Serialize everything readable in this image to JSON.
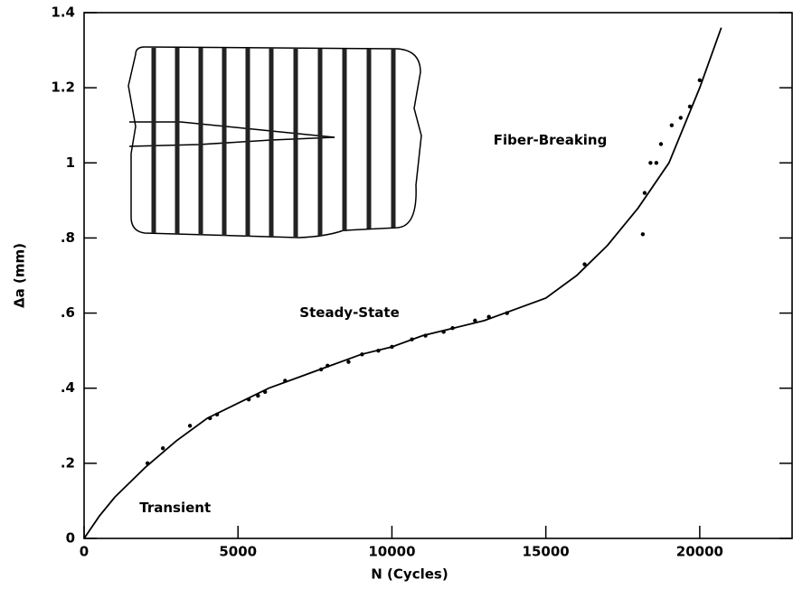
{
  "chart_data": {
    "type": "scatter",
    "xlabel": "N (Cycles)",
    "ylabel": "Δa (mm)",
    "xlim": [
      0,
      23000
    ],
    "ylim": [
      0,
      1.4
    ],
    "xticks": [
      0,
      5000,
      10000,
      15000,
      20000
    ],
    "yticks": [
      0,
      {
        "value": 0.2,
        "label": ".2"
      },
      {
        "value": 0.4,
        "label": ".4"
      },
      {
        "value": 0.6,
        "label": ".6"
      },
      {
        "value": 0.8,
        "label": ".8"
      },
      1,
      1.2,
      1.4
    ],
    "color": "#000000",
    "annotations": [
      {
        "text": "Transient",
        "x": 1800,
        "y": 0.08
      },
      {
        "text": "Steady-State",
        "x": 7000,
        "y": 0.6
      },
      {
        "text": "Fiber-Breaking",
        "x": 13300,
        "y": 1.06
      }
    ],
    "series": [
      {
        "style": "points",
        "x": [
          2060,
          2560,
          3440,
          4090,
          4320,
          5350,
          5650,
          5880,
          6530,
          7700,
          7910,
          8590,
          9030,
          9560,
          10000,
          10650,
          11090,
          11680,
          11970,
          12700,
          13150,
          13740,
          16260,
          18150,
          18210,
          18400,
          18590,
          18740,
          19090,
          19380,
          19680,
          20000
        ],
        "values": [
          0.2,
          0.24,
          0.3,
          0.32,
          0.33,
          0.37,
          0.38,
          0.39,
          0.42,
          0.45,
          0.46,
          0.47,
          0.49,
          0.5,
          0.51,
          0.53,
          0.54,
          0.55,
          0.56,
          0.58,
          0.59,
          0.6,
          0.73,
          0.81,
          0.92,
          1.0,
          1.0,
          1.05,
          1.1,
          1.12,
          1.15,
          1.22
        ]
      },
      {
        "style": "line",
        "x": [
          0,
          500,
          1000,
          2000,
          3000,
          4000,
          5000,
          6000,
          7000,
          8000,
          9000,
          10000,
          11000,
          12000,
          13000,
          14000,
          15000,
          16000,
          17000,
          18000,
          19000,
          20000,
          20700
        ],
        "values": [
          0,
          0.06,
          0.11,
          0.19,
          0.26,
          0.32,
          0.36,
          0.4,
          0.43,
          0.46,
          0.49,
          0.51,
          0.54,
          0.56,
          0.58,
          0.61,
          0.64,
          0.7,
          0.78,
          0.88,
          1.0,
          1.2,
          1.36
        ]
      }
    ]
  }
}
